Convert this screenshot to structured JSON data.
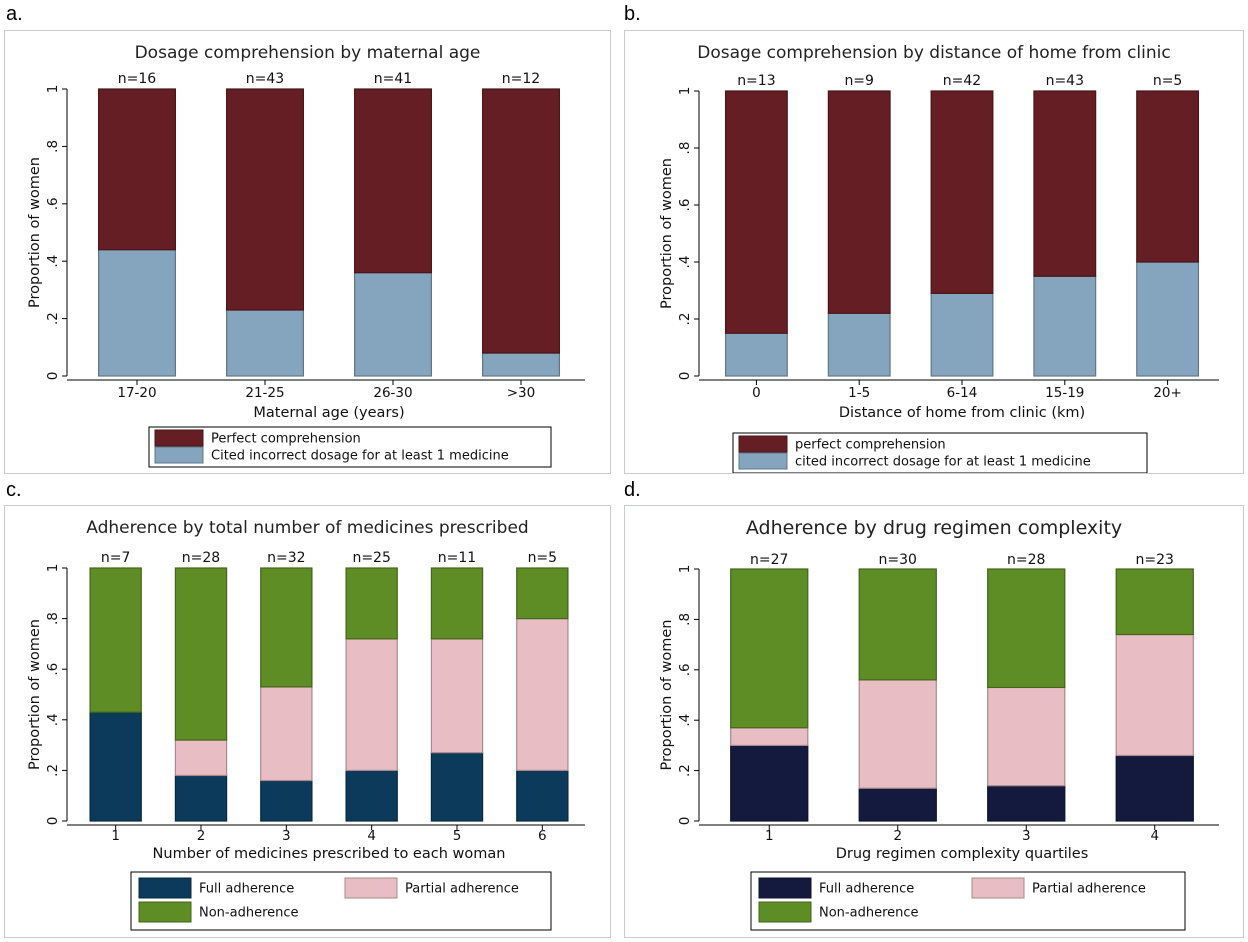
{
  "panels": [
    {
      "letter": "a.",
      "chart_data": {
        "type": "bar",
        "stacked": true,
        "title": "Dosage comprehension by maternal age",
        "xlabel": "Maternal age (years)",
        "ylabel": "Proportion of women",
        "ylim": [
          0,
          1
        ],
        "yticks": [
          "0",
          ".2",
          ".4",
          ".6",
          ".8",
          "1"
        ],
        "categories": [
          "17-20",
          "21-25",
          "26-30",
          ">30"
        ],
        "n_labels": [
          "n=16",
          "n=43",
          "n=41",
          "n=12"
        ],
        "series": [
          {
            "name": "Cited incorrect dosage for at least 1 medicine",
            "color": "#84a5bd",
            "values": [
              0.44,
              0.23,
              0.36,
              0.08
            ]
          },
          {
            "name": "Perfect comprehension",
            "color": "#651e23",
            "values": [
              0.56,
              0.77,
              0.64,
              0.92
            ]
          }
        ],
        "legend_order": [
          1,
          0
        ],
        "legend_layout": "stacked",
        "grid": false
      }
    },
    {
      "letter": "b.",
      "chart_data": {
        "type": "bar",
        "stacked": true,
        "title": "Dosage comprehension by distance of home from clinic",
        "xlabel": "Distance of home from clinic (km)",
        "ylabel": "Proportion of women",
        "ylim": [
          0,
          1
        ],
        "yticks": [
          "0",
          ".2",
          ".4",
          ".6",
          ".8",
          "1"
        ],
        "categories": [
          "0",
          "1-5",
          "6-14",
          "15-19",
          "20+"
        ],
        "n_labels": [
          "n=13",
          "n=9",
          "n=42",
          "n=43",
          "n=5"
        ],
        "series": [
          {
            "name": "cited incorrect dosage for at least 1 medicine",
            "color": "#84a5bd",
            "values": [
              0.15,
              0.22,
              0.29,
              0.35,
              0.4
            ]
          },
          {
            "name": "perfect comprehension",
            "color": "#651e23",
            "values": [
              0.85,
              0.78,
              0.71,
              0.65,
              0.6
            ]
          }
        ],
        "legend_order": [
          1,
          0
        ],
        "legend_layout": "stacked",
        "grid": false
      }
    },
    {
      "letter": "c.",
      "chart_data": {
        "type": "bar",
        "stacked": true,
        "title": "Adherence by total number of medicines prescribed",
        "xlabel": "Number of medicines prescribed to each woman",
        "ylabel": "Proportion of women",
        "ylim": [
          0,
          1
        ],
        "yticks": [
          "0",
          ".2",
          ".4",
          ".6",
          ".8",
          "1"
        ],
        "categories": [
          "1",
          "2",
          "3",
          "4",
          "5",
          "6"
        ],
        "n_labels": [
          "n=7",
          "n=28",
          "n=32",
          "n=25",
          "n=11",
          "n=5"
        ],
        "series": [
          {
            "name": "Full adherence",
            "color": "#0c3a5a",
            "values": [
              0.43,
              0.18,
              0.16,
              0.2,
              0.27,
              0.2
            ]
          },
          {
            "name": "Partial adherence",
            "color": "#e8bec4",
            "values": [
              0.0,
              0.14,
              0.37,
              0.52,
              0.45,
              0.6
            ]
          },
          {
            "name": "Non-adherence",
            "color": "#5e8c25",
            "values": [
              0.57,
              0.68,
              0.47,
              0.28,
              0.28,
              0.2
            ]
          }
        ],
        "legend_order": [
          0,
          1,
          2
        ],
        "legend_layout": "grid",
        "grid": false
      }
    },
    {
      "letter": "d.",
      "chart_data": {
        "type": "bar",
        "stacked": true,
        "title": "Adherence by drug regimen complexity",
        "xlabel": "Drug regimen complexity quartiles",
        "ylabel": "Proportion of women",
        "ylim": [
          0,
          1
        ],
        "yticks": [
          "0",
          ".2",
          ".4",
          ".6",
          ".8",
          "1"
        ],
        "categories": [
          "1",
          "2",
          "3",
          "4"
        ],
        "n_labels": [
          "n=27",
          "n=30",
          "n=28",
          "n=23"
        ],
        "series": [
          {
            "name": "Full adherence",
            "color": "#141a3e",
            "values": [
              0.3,
              0.13,
              0.14,
              0.26
            ]
          },
          {
            "name": "Partial adherence",
            "color": "#e8bec4",
            "values": [
              0.07,
              0.43,
              0.39,
              0.48
            ]
          },
          {
            "name": "Non-adherence",
            "color": "#5e8c25",
            "values": [
              0.63,
              0.44,
              0.47,
              0.26
            ]
          }
        ],
        "legend_order": [
          0,
          1,
          2
        ],
        "legend_layout": "grid",
        "grid": false
      }
    }
  ]
}
